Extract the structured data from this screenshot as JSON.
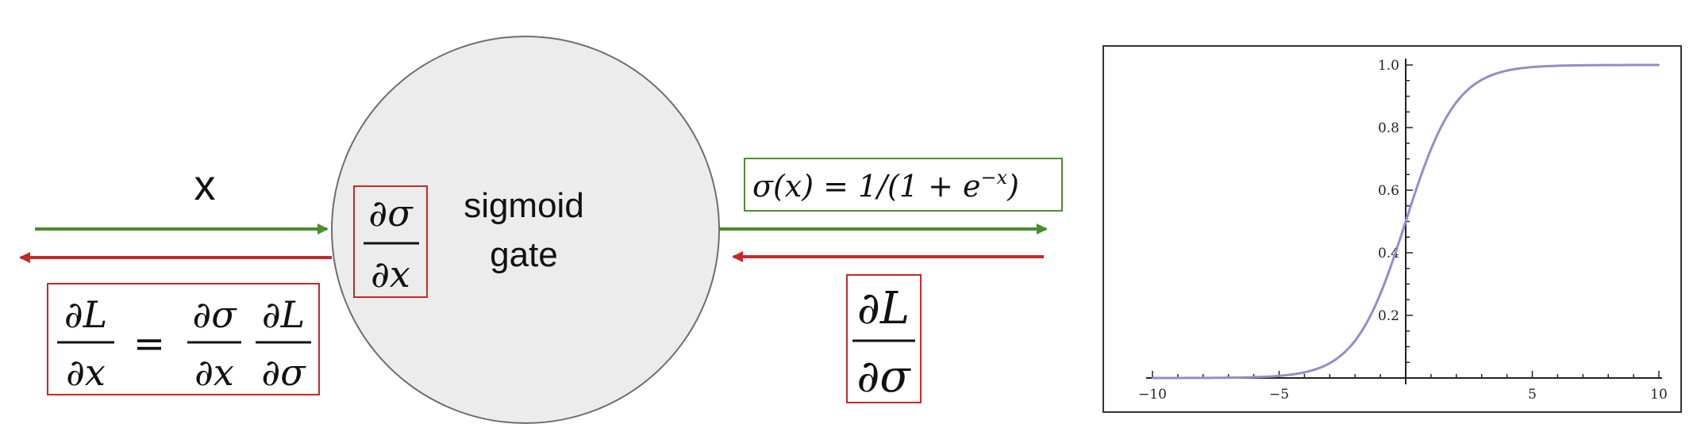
{
  "colors": {
    "forward": "#4c8c32",
    "backward": "#c62828",
    "gate_fill": "#ececec",
    "gate_stroke": "#6d6d6d",
    "curve": "#8f8fc8",
    "box_green": "#4c8c32",
    "box_red": "#c62828"
  },
  "diagram": {
    "input_label": "x",
    "gate_label_line1": "sigmoid",
    "gate_label_line2": "gate",
    "local_grad": {
      "numerator": "∂σ",
      "denominator": "∂x"
    },
    "output_formula": "σ(x) = 1/(1 + e",
    "output_formula_exp": "−x",
    "output_formula_close": ")",
    "upstream_grad": {
      "numerator": "∂L",
      "denominator": "∂σ"
    },
    "chain_rule": {
      "lhs_num": "∂L",
      "lhs_den": "∂x",
      "equals": "=",
      "t1_num": "∂σ",
      "t1_den": "∂x",
      "t2_num": "∂L",
      "t2_den": "∂σ"
    }
  },
  "chart_data": {
    "type": "line",
    "function": "sigmoid",
    "title": "",
    "xlabel": "",
    "ylabel": "",
    "xlim": [
      -10,
      10
    ],
    "ylim": [
      0,
      1
    ],
    "x_ticks": [
      -10,
      -5,
      5,
      10
    ],
    "x_tick_labels": [
      "−10",
      "−5",
      "5",
      "10"
    ],
    "y_ticks": [
      0.2,
      0.4,
      0.6,
      0.8,
      1.0
    ],
    "y_tick_labels": [
      "0.2",
      "0.4",
      "0.6",
      "0.8",
      "1.0"
    ],
    "series": [
      {
        "name": "σ(x)",
        "x": [
          -10,
          -8,
          -6,
          -5,
          -4,
          -3,
          -2,
          -1,
          0,
          1,
          2,
          3,
          4,
          5,
          6,
          8,
          10
        ],
        "values": [
          5e-05,
          0.0003,
          0.0025,
          0.0067,
          0.018,
          0.047,
          0.119,
          0.269,
          0.5,
          0.731,
          0.881,
          0.953,
          0.982,
          0.9933,
          0.9975,
          0.9997,
          0.99995
        ]
      }
    ]
  }
}
